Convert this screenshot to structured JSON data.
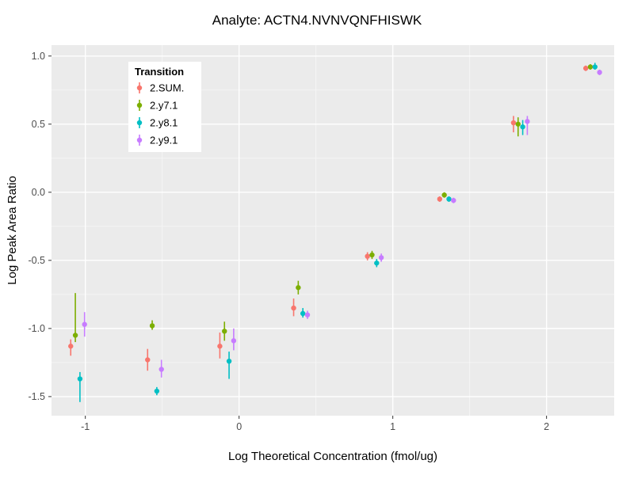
{
  "title": "Analyte: ACTN4.NVNVQNFHISWK",
  "axes": {
    "x_label": "Log Theoretical Concentration (fmol/ug)",
    "y_label": "Log Peak Area Ratio",
    "x_ticks": [
      -1,
      0,
      1,
      2
    ],
    "x_tick_labels": [
      "-1",
      "0",
      "1",
      "2"
    ],
    "y_ticks": [
      -1.5,
      -1.0,
      -0.5,
      0.0,
      0.5,
      1.0
    ],
    "y_tick_labels": [
      "-1.5",
      "-1.0",
      "-0.5",
      "0.0",
      "0.5",
      "1.0"
    ]
  },
  "legend": {
    "title": "Transition",
    "entries": [
      "2.SUM.",
      "2.y7.1",
      "2.y8.1",
      "2.y9.1"
    ]
  },
  "colors": {
    "panel_background": "#EBEBEB",
    "grid_major": "#FFFFFF",
    "grid_minor": "#F7F7F7",
    "tick_label": "#4D4D4D",
    "tick_mark": "#333333",
    "text": "#000000",
    "legend_background": "#FFFFFF"
  },
  "chart_data": {
    "type": "scatter",
    "subtype": "pointrange-dodged",
    "title": "Analyte: ACTN4.NVNVQNFHISWK",
    "xlabel": "Log Theoretical Concentration (fmol/ug)",
    "ylabel": "Log Peak Area Ratio",
    "xlim": [
      -1.22,
      2.44
    ],
    "ylim": [
      -1.64,
      1.08
    ],
    "grid": true,
    "legend_position": "inside-top-left",
    "legend_title": "Transition",
    "dodge_offsets": [
      -0.045,
      -0.015,
      0.015,
      0.045
    ],
    "x": [
      -1.05,
      -0.55,
      -0.08,
      0.4,
      0.88,
      1.35,
      1.83,
      2.3
    ],
    "series": [
      {
        "name": "2.SUM.",
        "color": "#F8766D",
        "y": [
          -1.13,
          -1.23,
          -1.13,
          -0.85,
          -0.47,
          -0.05,
          0.51,
          0.91
        ],
        "ymin": [
          -1.2,
          -1.31,
          -1.22,
          -0.91,
          -0.5,
          -0.07,
          0.44,
          0.89
        ],
        "ymax": [
          -1.08,
          -1.15,
          -1.03,
          -0.78,
          -0.44,
          -0.03,
          0.56,
          0.93
        ]
      },
      {
        "name": "2.y7.1",
        "color": "#7CAE00",
        "y": [
          -1.05,
          -0.98,
          -1.02,
          -0.7,
          -0.46,
          -0.02,
          0.5,
          0.92
        ],
        "ymin": [
          -1.1,
          -1.01,
          -1.09,
          -0.75,
          -0.49,
          -0.04,
          0.41,
          0.9
        ],
        "ymax": [
          -0.74,
          -0.94,
          -0.95,
          -0.65,
          -0.43,
          0.0,
          0.55,
          0.94
        ]
      },
      {
        "name": "2.y8.1",
        "color": "#00BFC4",
        "y": [
          -1.37,
          -1.46,
          -1.24,
          -0.89,
          -0.52,
          -0.05,
          0.48,
          0.92
        ],
        "ymin": [
          -1.54,
          -1.49,
          -1.37,
          -0.92,
          -0.55,
          -0.07,
          0.42,
          0.9
        ],
        "ymax": [
          -1.32,
          -1.43,
          -1.17,
          -0.85,
          -0.49,
          -0.03,
          0.53,
          0.95
        ]
      },
      {
        "name": "2.y9.1",
        "color": "#C77CFF",
        "y": [
          -0.97,
          -1.3,
          -1.09,
          -0.9,
          -0.48,
          -0.06,
          0.52,
          0.88
        ],
        "ymin": [
          -1.06,
          -1.36,
          -1.16,
          -0.93,
          -0.51,
          -0.08,
          0.42,
          0.86
        ],
        "ymax": [
          -0.88,
          -1.23,
          -1.0,
          -0.87,
          -0.45,
          -0.04,
          0.56,
          0.9
        ]
      }
    ]
  }
}
